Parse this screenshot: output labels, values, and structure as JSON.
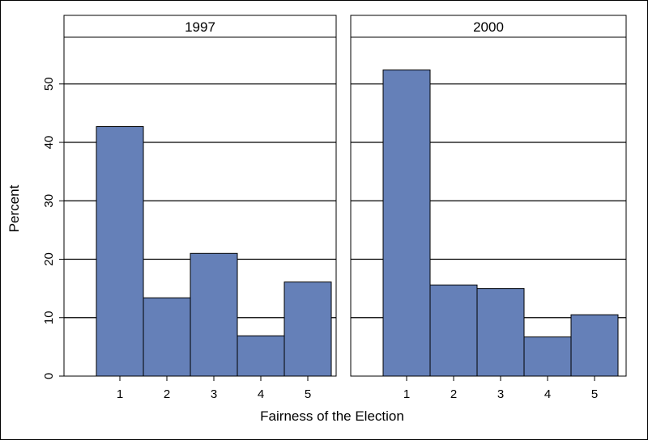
{
  "chart_data": {
    "type": "bar",
    "ylabel": "Percent",
    "xlabel": "Fairness of the Election",
    "ylim": [
      0,
      58
    ],
    "yticks": [
      0,
      10,
      20,
      30,
      40,
      50
    ],
    "categories": [
      "1",
      "2",
      "3",
      "4",
      "5"
    ],
    "grid": true,
    "bar_color": "#6580B8",
    "panels": [
      {
        "title": "1997",
        "values": [
          42.7,
          13.4,
          21.0,
          6.9,
          16.1
        ]
      },
      {
        "title": "2000",
        "values": [
          52.4,
          15.6,
          15.0,
          6.7,
          10.5
        ]
      }
    ]
  }
}
